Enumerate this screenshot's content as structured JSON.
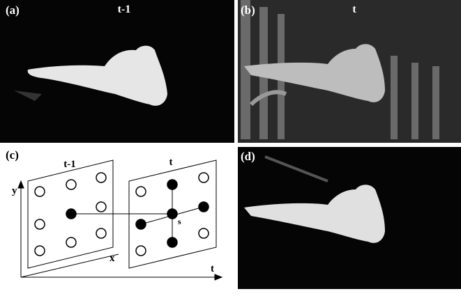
{
  "panels": [
    {
      "label": "(a)",
      "title": "t-1"
    },
    {
      "label": "(b)",
      "title": "t"
    },
    {
      "label": "(c)"
    },
    {
      "label": "(d)"
    }
  ],
  "diagram": {
    "frame_labels": [
      "t-1",
      "t"
    ],
    "axis_labels": {
      "y": "y",
      "x": "x",
      "t": "t"
    },
    "center_label": "s"
  }
}
